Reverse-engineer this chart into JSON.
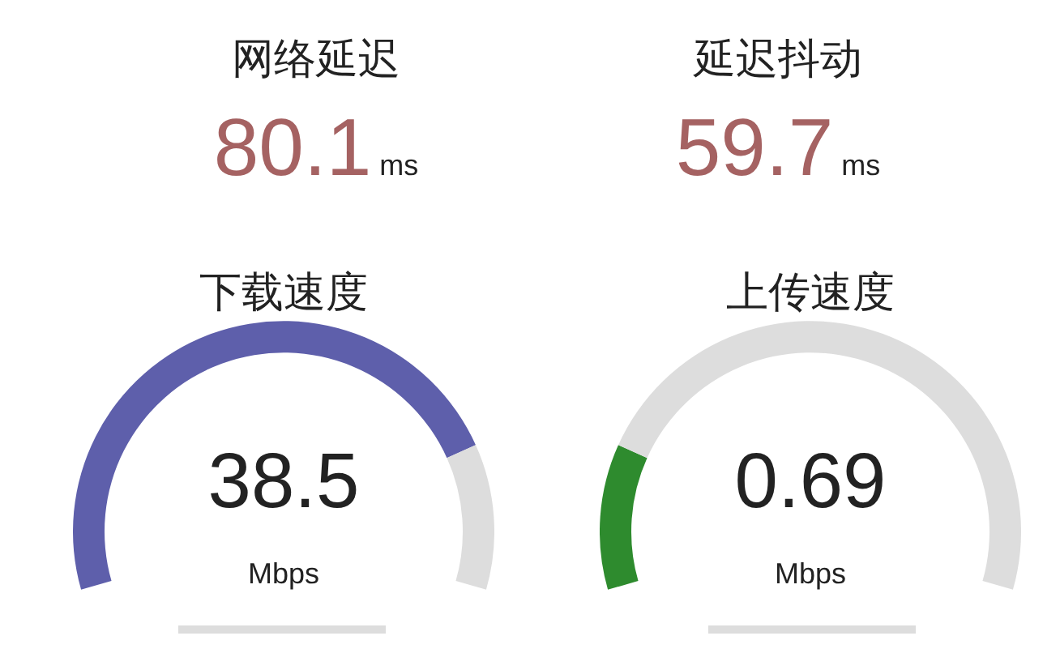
{
  "chart_data": [
    {
      "type": "other",
      "title": "网络延迟",
      "annotations": [
        "80.1",
        "ms"
      ]
    },
    {
      "type": "other",
      "title": "延迟抖动",
      "annotations": [
        "59.7",
        "ms"
      ]
    },
    {
      "type": "donut",
      "title": "下载速度",
      "annotations": [
        "38.5",
        "Mbps"
      ],
      "categories": [
        null,
        null
      ],
      "values": [
        81,
        19
      ],
      "colors": [
        "#5e5fab",
        "#dddddd"
      ]
    },
    {
      "type": "donut",
      "title": "上传速度",
      "annotations": [
        "0.69",
        "Mbps"
      ],
      "categories": [
        null,
        null
      ],
      "values": [
        19,
        81
      ],
      "colors": [
        "#2e8b2e",
        "#dddddd"
      ]
    }
  ]
}
